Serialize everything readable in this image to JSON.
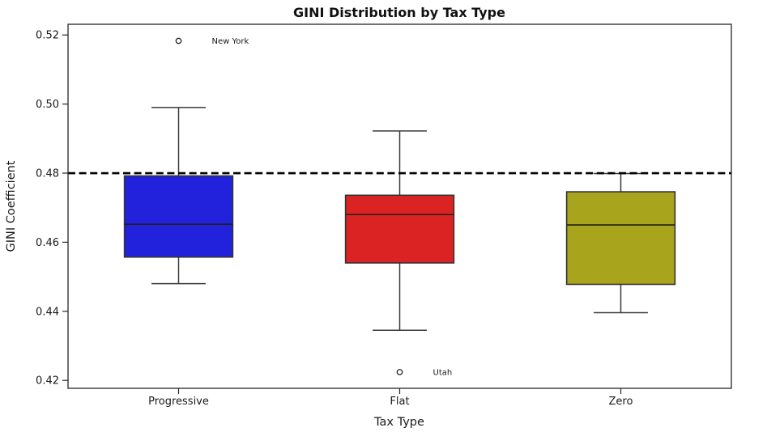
{
  "chart_data": {
    "type": "boxplot",
    "title": "GINI Distribution by Tax Type",
    "xlabel": "Tax Type",
    "ylabel": "GINI Coefficient",
    "categories": [
      "Progressive",
      "Flat",
      "Zero"
    ],
    "ylim": [
      0.4177,
      0.5231
    ],
    "y_ticks": [
      0.42,
      0.44,
      0.46,
      0.48,
      0.5,
      0.52
    ],
    "grid": false,
    "legend": "none",
    "reference_line": {
      "value": 0.48,
      "style": "dashed",
      "color": "#000000"
    },
    "series": [
      {
        "name": "Progressive",
        "color": "#2222dc",
        "whisker_low": 0.448,
        "q1": 0.4557,
        "median": 0.4652,
        "q3": 0.4792,
        "whisker_high": 0.499,
        "outliers": [
          {
            "value": 0.5183,
            "label": "New York"
          }
        ]
      },
      {
        "name": "Flat",
        "color": "#dc2323",
        "whisker_low": 0.4345,
        "q1": 0.454,
        "median": 0.468,
        "q3": 0.4736,
        "whisker_high": 0.4922,
        "outliers": [
          {
            "value": 0.4224,
            "label": "Utah"
          }
        ]
      },
      {
        "name": "Zero",
        "color": "#a8a41c",
        "whisker_low": 0.4396,
        "q1": 0.4478,
        "median": 0.465,
        "q3": 0.4746,
        "whisker_high": 0.4799,
        "outliers": []
      }
    ],
    "style_colors": {
      "frame": "#262626",
      "box_edge": "#333333",
      "median_line": "#1f1f1f",
      "whisker": "#3a3a3a",
      "outlier_edge": "#262626",
      "annotation_text": "#1a1a1a",
      "background": "#ffffff"
    }
  }
}
